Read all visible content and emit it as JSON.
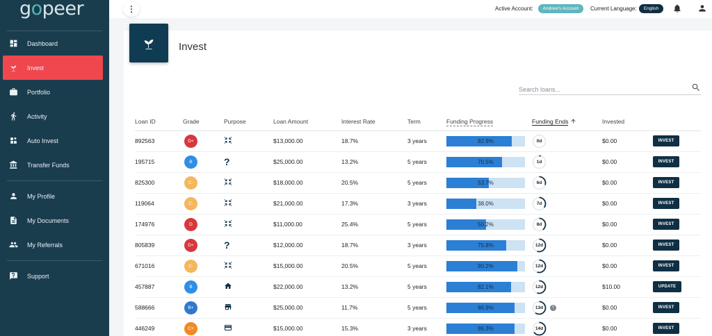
{
  "brand": {
    "logo_text_1": "g",
    "logo_text_2": "o",
    "logo_text_3": "peer"
  },
  "sidebar": {
    "items": [
      {
        "label": "Dashboard",
        "icon": "dashboard-icon"
      },
      {
        "label": "Invest",
        "icon": "sprout-icon",
        "active": true
      },
      {
        "label": "Portfolio",
        "icon": "briefcase-icon"
      },
      {
        "label": "Activity",
        "icon": "running-person-icon"
      },
      {
        "label": "Auto Invest",
        "icon": "auto-invest-icon"
      },
      {
        "label": "Transfer Funds",
        "icon": "bank-icon"
      },
      {
        "label": "My Profile",
        "icon": "person-icon"
      },
      {
        "label": "My Documents",
        "icon": "document-icon"
      },
      {
        "label": "My Referrals",
        "icon": "people-icon"
      },
      {
        "label": "Support",
        "icon": "help-icon"
      }
    ]
  },
  "topbar": {
    "active_account_label": "Active Account:",
    "active_account_value": "Andrew's Account",
    "language_label": "Current Language:",
    "language_value": "English"
  },
  "page": {
    "title": "Invest"
  },
  "search": {
    "placeholder": "Search loans..."
  },
  "table": {
    "headers": [
      "Loan ID",
      "Grade",
      "Purpose",
      "Loan Amount",
      "Interest Rate",
      "Term",
      "Funding Progress",
      "Funding Ends",
      "Invested",
      ""
    ],
    "rows": [
      {
        "id": "892563",
        "grade": "D+",
        "grade_color": "#d8373c",
        "purpose": "compress-icon",
        "amount": "$13,000.00",
        "rate": "18.7%",
        "term": "3 years",
        "progress": 82.9,
        "progress_label": "82.9%",
        "ends": "0d",
        "ends_frac": 0.0,
        "invested": "$0.00",
        "action": "INVEST"
      },
      {
        "id": "195715",
        "grade": "B",
        "grade_color": "#2f8ee6",
        "purpose": "question-icon",
        "amount": "$25,000.00",
        "rate": "13.2%",
        "term": "5 years",
        "progress": 70.5,
        "progress_label": "70.5%",
        "ends": "1d",
        "ends_frac": 0.04,
        "invested": "$0.00",
        "action": "INVEST"
      },
      {
        "id": "825300",
        "grade": "C-",
        "grade_color": "#f5b65c",
        "purpose": "compress-icon",
        "amount": "$18,000.00",
        "rate": "20.5%",
        "term": "5 years",
        "progress": 53.7,
        "progress_label": "53.7%",
        "ends": "6d",
        "ends_frac": 0.3,
        "invested": "$0.00",
        "action": "INVEST"
      },
      {
        "id": "119064",
        "grade": "C-",
        "grade_color": "#f5b65c",
        "purpose": "compress-icon",
        "amount": "$21,000.00",
        "rate": "17.3%",
        "term": "3 years",
        "progress": 38.0,
        "progress_label": "38.0%",
        "ends": "7d",
        "ends_frac": 0.35,
        "invested": "$0.00",
        "action": "INVEST"
      },
      {
        "id": "174976",
        "grade": "D",
        "grade_color": "#d8373c",
        "purpose": "compress-icon",
        "amount": "$11,000.00",
        "rate": "25.4%",
        "term": "5 years",
        "progress": 50.2,
        "progress_label": "50.2%",
        "ends": "8d",
        "ends_frac": 0.4,
        "invested": "$0.00",
        "action": "INVEST"
      },
      {
        "id": "805839",
        "grade": "D+",
        "grade_color": "#d8373c",
        "purpose": "question-icon",
        "amount": "$12,000.00",
        "rate": "18.7%",
        "term": "3 years",
        "progress": 75.8,
        "progress_label": "75.8%",
        "ends": "12d",
        "ends_frac": 0.55,
        "invested": "$0.00",
        "action": "INVEST"
      },
      {
        "id": "671016",
        "grade": "C-",
        "grade_color": "#f5b65c",
        "purpose": "compress-icon",
        "amount": "$15,000.00",
        "rate": "20.5%",
        "term": "5 years",
        "progress": 90.2,
        "progress_label": "90.2%",
        "ends": "12d",
        "ends_frac": 0.55,
        "invested": "$0.00",
        "action": "INVEST"
      },
      {
        "id": "457887",
        "grade": "B",
        "grade_color": "#2f8ee6",
        "purpose": "home-icon",
        "amount": "$22,000.00",
        "rate": "13.2%",
        "term": "5 years",
        "progress": 82.1,
        "progress_label": "82.1%",
        "ends": "12d",
        "ends_frac": 0.55,
        "invested": "$10.00",
        "action": "UPDATE"
      },
      {
        "id": "588666",
        "grade": "B+",
        "grade_color": "#2f78d0",
        "purpose": "store-icon",
        "amount": "$25,000.00",
        "rate": "11.7%",
        "term": "5 years",
        "progress": 86.9,
        "progress_label": "86.9%",
        "ends": "13d",
        "ends_frac": 0.6,
        "invested": "$0.00",
        "action": "INVEST",
        "info": true
      },
      {
        "id": "446249",
        "grade": "C+",
        "grade_color": "#f08a24",
        "purpose": "credit-card-icon",
        "amount": "$15,000.00",
        "rate": "15.3%",
        "term": "3 years",
        "progress": 86.3,
        "progress_label": "86.3%",
        "ends": "14d",
        "ends_frac": 0.65,
        "invested": "$0.00",
        "action": "INVEST"
      }
    ]
  },
  "colors": {
    "sidebar": "#1a3d4e",
    "active": "#f0474f",
    "primary": "#0f2f44",
    "progress_fill": "#2b7fd4",
    "progress_bg": "#cde2f3",
    "account_pill": "#5fb6bf"
  }
}
